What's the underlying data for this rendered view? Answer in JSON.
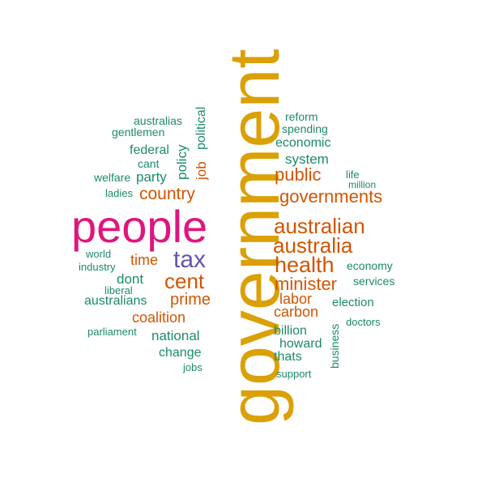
{
  "words": {
    "government": "government",
    "people": "people",
    "tax": "tax",
    "cent": "cent",
    "country": "country",
    "time": "time",
    "prime": "prime",
    "coalition": "coalition",
    "dont": "dont",
    "party": "party",
    "federal": "federal",
    "cant": "cant",
    "australias": "australias",
    "gentlemen": "gentlemen",
    "welfare": "welfare",
    "ladies": "ladies",
    "world": "world",
    "industry": "industry",
    "liberal": "liberal",
    "australians": "australians",
    "parliament": "parliament",
    "national": "national",
    "change": "change",
    "jobs": "jobs",
    "policy": "policy",
    "job": "job",
    "political": "political",
    "reform": "reform",
    "spending": "spending",
    "economic": "economic",
    "system": "system",
    "public": "public",
    "life": "life",
    "million": "million",
    "governments": "governments",
    "australian": "australian",
    "australia": "australia",
    "health": "health",
    "economy": "economy",
    "minister": "minister",
    "services": "services",
    "labor": "labor",
    "election": "election",
    "carbon": "carbon",
    "doctors": "doctors",
    "billion": "billion",
    "howard": "howard",
    "thats": "thats",
    "support": "support",
    "business": "business"
  },
  "colors": {
    "teal": "#1b8a6b",
    "orange": "#d35400",
    "gold": "#daa005",
    "magenta": "#e0157d",
    "purple": "#6257a8"
  }
}
